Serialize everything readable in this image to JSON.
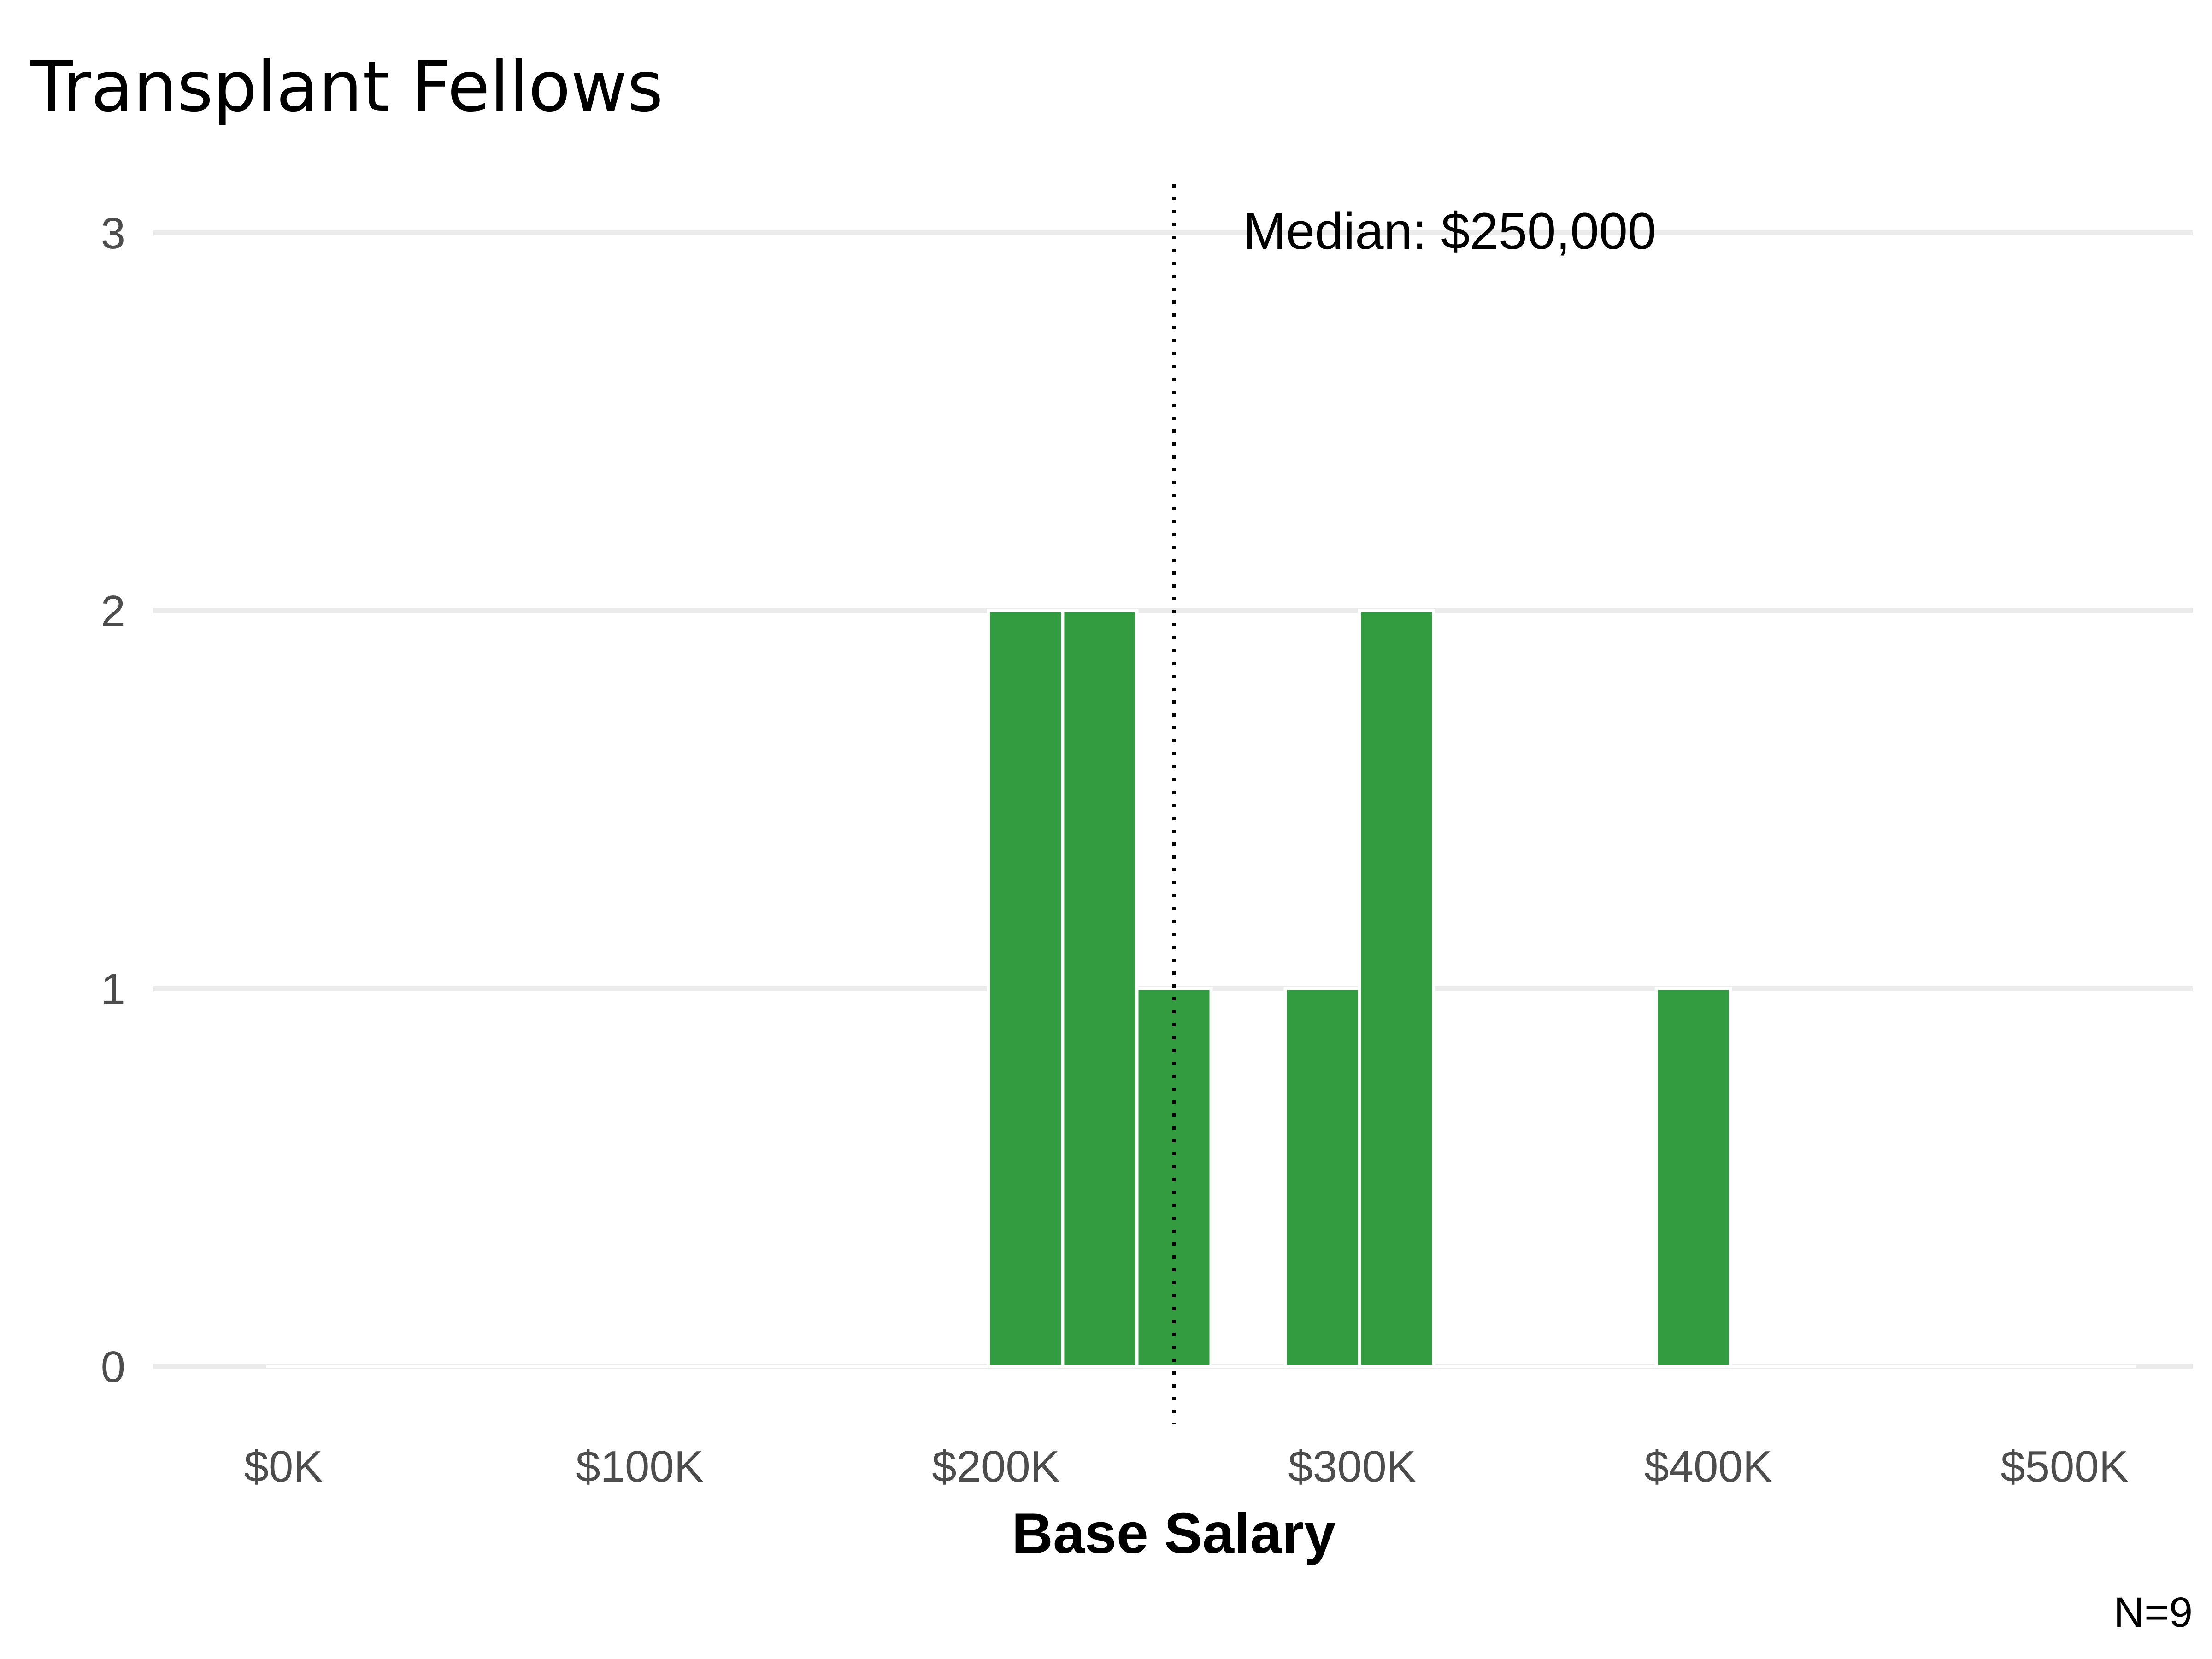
{
  "chart_data": {
    "type": "bar",
    "title": "Transplant Fellows",
    "xlabel": "Base Salary",
    "ylabel": "",
    "caption": "N=9",
    "xlim": [
      -10000,
      530000
    ],
    "ylim": [
      -0.15,
      3.15
    ],
    "x_ticks": [
      {
        "value": 0,
        "label": "$0K"
      },
      {
        "value": 100000,
        "label": "$100K"
      },
      {
        "value": 200000,
        "label": "$200K"
      },
      {
        "value": 300000,
        "label": "$300K"
      },
      {
        "value": 400000,
        "label": "$400K"
      },
      {
        "value": 500000,
        "label": "$500K"
      }
    ],
    "y_ticks": [
      {
        "value": 0,
        "label": "0"
      },
      {
        "value": 1,
        "label": "1"
      },
      {
        "value": 2,
        "label": "2"
      },
      {
        "value": 3,
        "label": "3"
      }
    ],
    "bin_width": 20833,
    "bins": [
      {
        "x0": 197917,
        "x1": 218750,
        "count": 2
      },
      {
        "x0": 218750,
        "x1": 239583,
        "count": 2
      },
      {
        "x0": 239583,
        "x1": 260417,
        "count": 1
      },
      {
        "x0": 281250,
        "x1": 302083,
        "count": 1
      },
      {
        "x0": 302083,
        "x1": 322917,
        "count": 2
      },
      {
        "x0": 385417,
        "x1": 406250,
        "count": 1
      }
    ],
    "baseline_range": [
      -10000,
      520000
    ],
    "bar_color": "#339C41",
    "median": {
      "value": 250000,
      "label": "Median: $250,000"
    },
    "grid": true,
    "legend": "none"
  }
}
